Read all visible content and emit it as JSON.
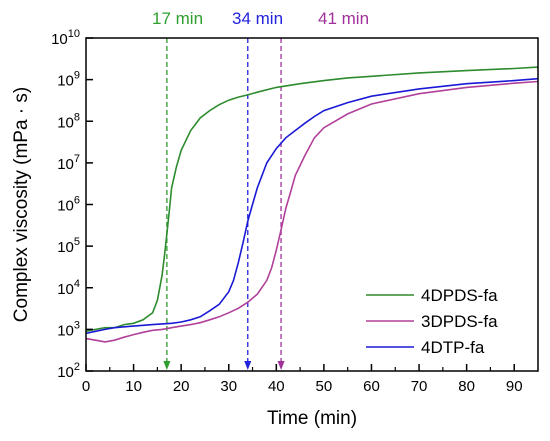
{
  "chart_data": {
    "type": "line",
    "xlabel": "Time (min)",
    "ylabel": "Complex viscosity (mPa · s)",
    "xlim": [
      0,
      95
    ],
    "ylim": [
      100,
      10000000000
    ],
    "yscale": "log",
    "xticks": [
      0,
      10,
      20,
      30,
      40,
      50,
      60,
      70,
      80,
      90
    ],
    "xtick_labels": [
      "0",
      "10",
      "20",
      "30",
      "40",
      "50",
      "60",
      "70",
      "80",
      "90"
    ],
    "yticks": [
      100,
      1000,
      10000,
      100000,
      1000000,
      10000000,
      100000000,
      1000000000,
      10000000000
    ],
    "ytick_exponents": [
      "2",
      "3",
      "4",
      "5",
      "6",
      "7",
      "8",
      "9",
      "10"
    ],
    "ytick_base": "10",
    "grid": false,
    "legend_position": "bottom-right",
    "series": [
      {
        "name": "4DPDS-fa",
        "color": "#2e8b2e",
        "x": [
          0,
          2,
          4,
          6,
          8,
          10,
          12,
          14,
          15,
          16,
          16.5,
          17,
          17.5,
          18,
          19,
          20,
          22,
          24,
          26,
          28,
          30,
          32,
          34,
          36,
          40,
          45,
          50,
          55,
          60,
          70,
          80,
          90,
          95
        ],
        "y": [
          900,
          1000,
          1100,
          1100,
          1300,
          1400,
          1700,
          2500,
          5000,
          20000,
          60000,
          200000,
          700000,
          2500000,
          8000000,
          20000000,
          60000000,
          120000000,
          180000000,
          250000000,
          320000000,
          380000000,
          430000000,
          500000000,
          650000000,
          800000000,
          950000000,
          1100000000,
          1200000000,
          1450000000,
          1650000000,
          1850000000,
          2000000000
        ]
      },
      {
        "name": "3DPDS-fa",
        "color": "#b0409a",
        "x": [
          0,
          2,
          4,
          6,
          8,
          10,
          12,
          14,
          16,
          18,
          20,
          22,
          24,
          26,
          28,
          30,
          32,
          34,
          36,
          38,
          39,
          40,
          41,
          42,
          43,
          44,
          46,
          48,
          50,
          55,
          60,
          70,
          80,
          90,
          95
        ],
        "y": [
          600,
          550,
          500,
          550,
          650,
          750,
          850,
          950,
          1000,
          1100,
          1200,
          1300,
          1450,
          1700,
          2000,
          2500,
          3200,
          4500,
          7000,
          15000,
          30000,
          80000,
          250000,
          800000,
          2000000,
          5000000,
          15000000,
          40000000,
          70000000,
          150000000,
          260000000,
          460000000,
          650000000,
          820000000,
          900000000
        ]
      },
      {
        "name": "4DTP-fa",
        "color": "#1a1ad6",
        "x": [
          0,
          2,
          4,
          6,
          8,
          10,
          12,
          14,
          16,
          18,
          20,
          22,
          24,
          26,
          28,
          30,
          31,
          32,
          33,
          34,
          35,
          36,
          38,
          40,
          42,
          44,
          46,
          48,
          50,
          55,
          60,
          70,
          80,
          90,
          95
        ],
        "y": [
          800,
          900,
          1000,
          1100,
          1150,
          1200,
          1250,
          1300,
          1350,
          1400,
          1500,
          1700,
          2000,
          2800,
          4000,
          8000,
          15000,
          40000,
          120000,
          400000,
          1000000,
          2500000,
          10000000,
          22000000,
          40000000,
          60000000,
          90000000,
          130000000,
          180000000,
          280000000,
          400000000,
          600000000,
          800000000,
          950000000,
          1050000000
        ]
      }
    ],
    "markers": [
      {
        "x": 17,
        "label": "17 min",
        "color": "#2e9e2e"
      },
      {
        "x": 34,
        "label": "34 min",
        "color": "#2222dd"
      },
      {
        "x": 41,
        "label": "41 min",
        "color": "#a0309a"
      }
    ]
  }
}
